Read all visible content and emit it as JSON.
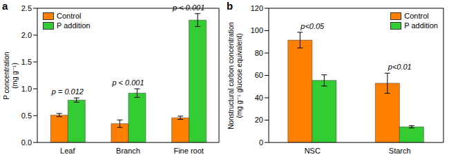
{
  "chart_data": [
    {
      "type": "bar",
      "title": "a",
      "categories": [
        "Leaf",
        "Branch",
        "Fine root"
      ],
      "series": [
        {
          "name": "Control",
          "color": "#ff8000",
          "values": [
            0.51,
            0.35,
            0.46
          ],
          "errors": [
            0.03,
            0.07,
            0.03
          ]
        },
        {
          "name": "P addition",
          "color": "#33cc33",
          "values": [
            0.79,
            0.92,
            2.28
          ],
          "errors": [
            0.04,
            0.08,
            0.12
          ]
        }
      ],
      "y_label": "P concentration (mg g⁻¹)",
      "ylim": [
        0,
        2.5
      ],
      "yticks": [
        {
          "value": 0,
          "label": "0.0"
        },
        0.5,
        {
          "value": 1,
          "label": "1.0"
        },
        1.5,
        {
          "value": 2,
          "label": "2.0"
        },
        2.5
      ],
      "annotations": [
        {
          "category": "Leaf",
          "text": "p = 0.012"
        },
        {
          "category": "Branch",
          "text": "p < 0.001"
        },
        {
          "category": "Fine root",
          "text": "p < 0.001"
        }
      ],
      "legend": "upper left",
      "grid": false
    },
    {
      "type": "bar",
      "title": "b",
      "categories": [
        "NSC",
        "Starch"
      ],
      "series": [
        {
          "name": "Control",
          "color": "#ff8000",
          "values": [
            91.5,
            53
          ],
          "errors": [
            7,
            9
          ]
        },
        {
          "name": "P addition",
          "color": "#33cc33",
          "values": [
            55.5,
            14
          ],
          "errors": [
            5,
            1
          ]
        }
      ],
      "y_label": "Nonstructural carbon concentration (mg g⁻¹ glucose equivalent)",
      "ylim": [
        0,
        120
      ],
      "yticks": [
        0,
        20,
        40,
        60,
        80,
        100,
        120
      ],
      "annotations": [
        {
          "category": "NSC",
          "text": "p<0.05"
        },
        {
          "category": "Starch",
          "text": "p<0.01"
        }
      ],
      "legend": "upper right",
      "grid": false
    }
  ]
}
